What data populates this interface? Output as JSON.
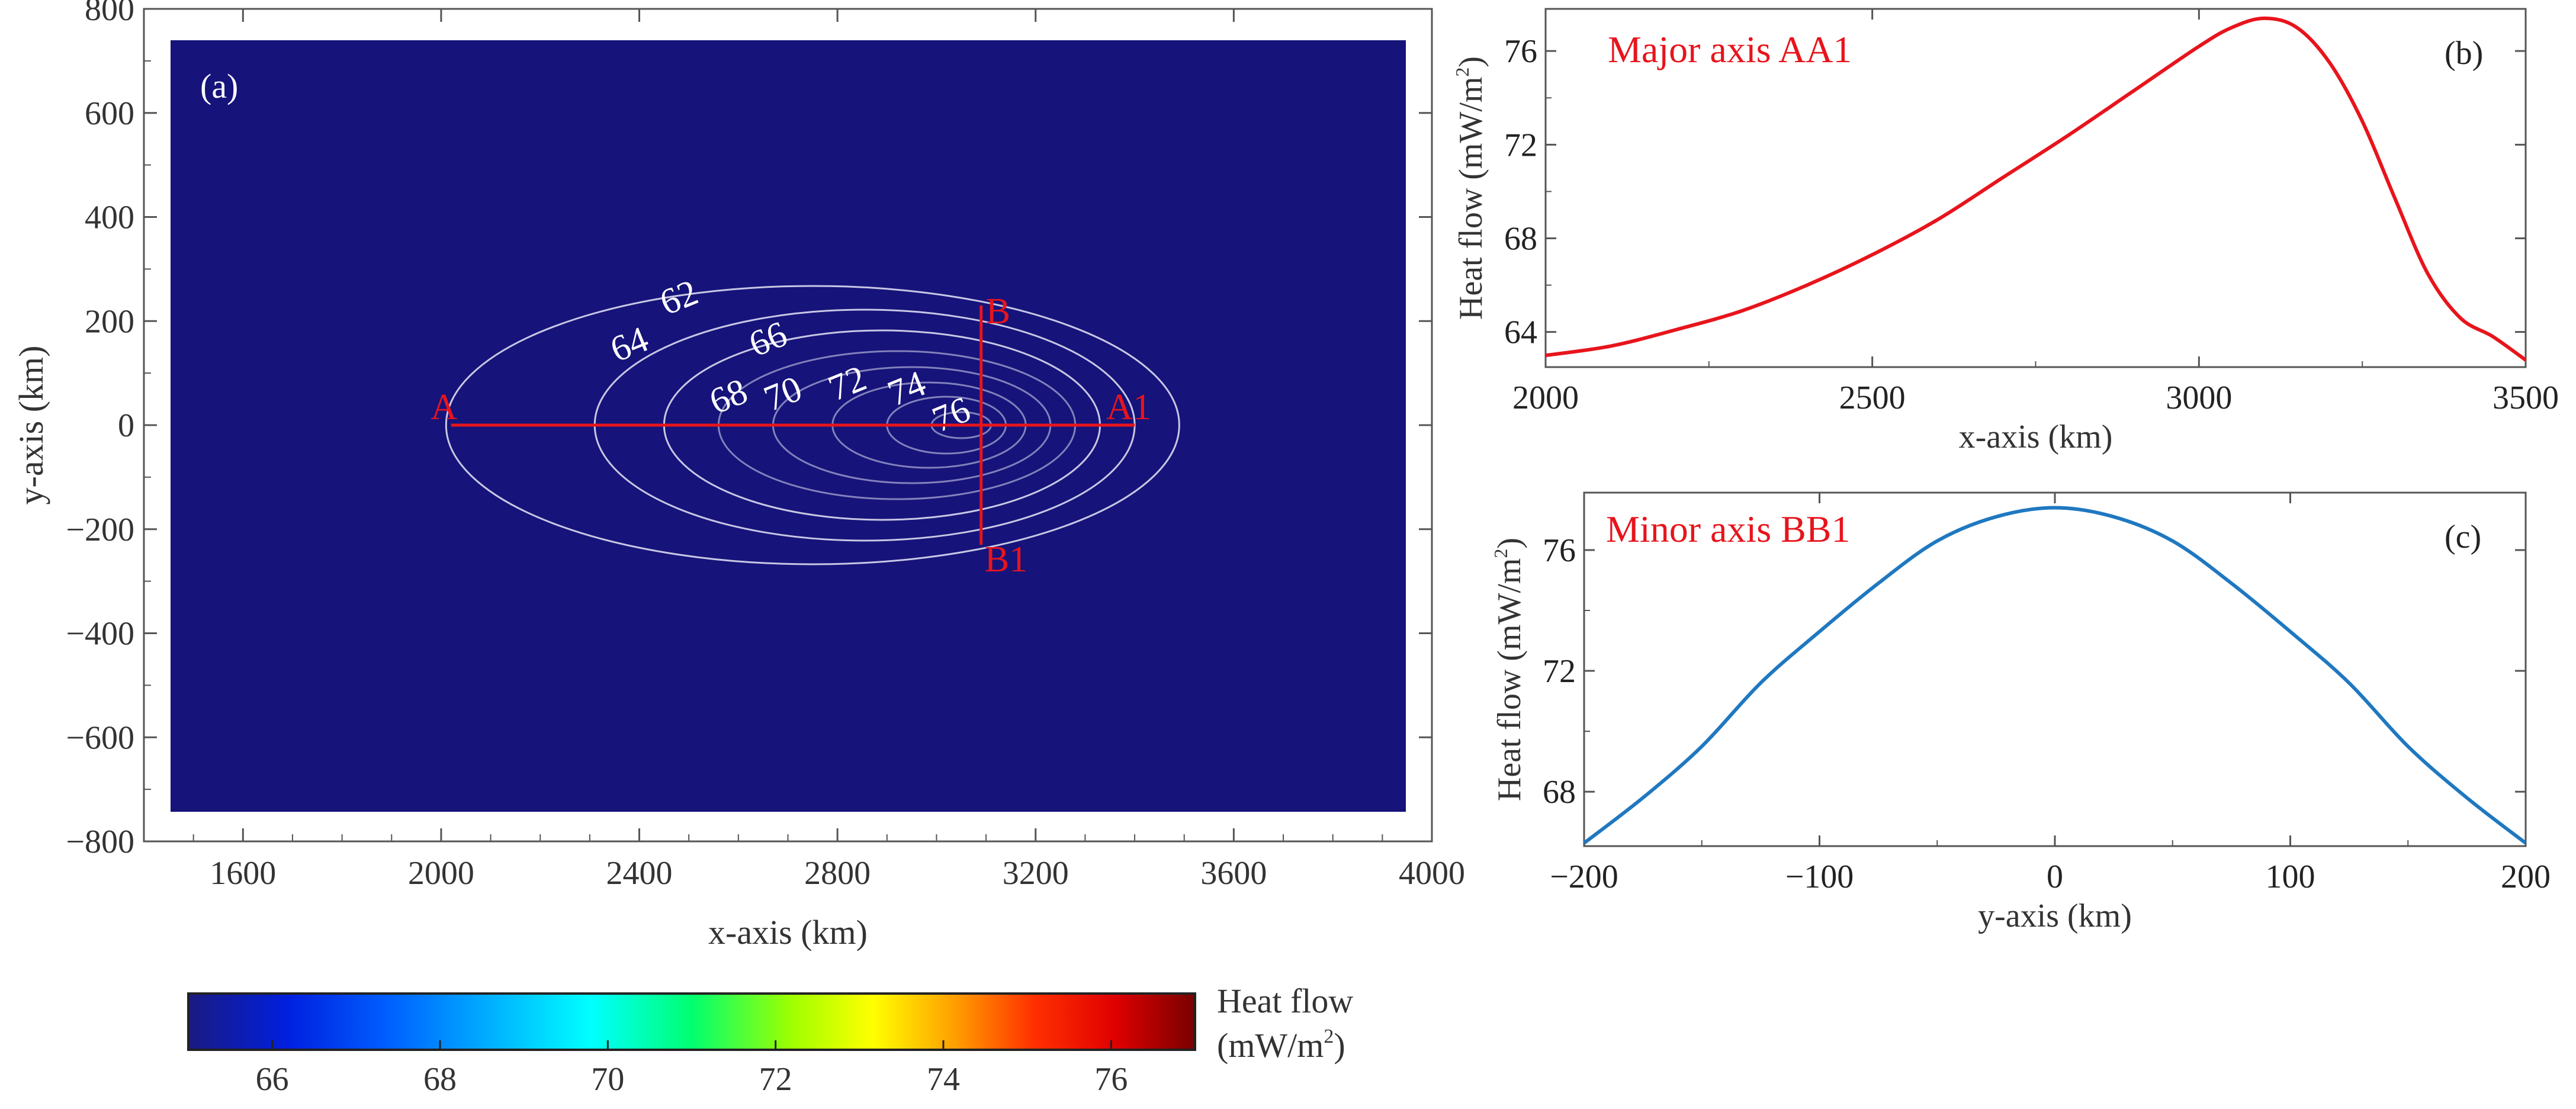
{
  "chart_data": [
    {
      "panel": "(a)",
      "type": "heatmap",
      "title": "",
      "xlabel": "x-axis (km)",
      "ylabel": "y-axis (km)",
      "xlim": [
        1400,
        4000
      ],
      "ylim": [
        -800,
        800
      ],
      "x_ticks": [
        1600,
        2000,
        2400,
        2800,
        3200,
        3600,
        4000
      ],
      "y_ticks": [
        800,
        600,
        400,
        200,
        0,
        -200,
        -400,
        -600,
        -800
      ],
      "data_extent": {
        "x": [
          1450,
          3990
        ],
        "y": [
          -790,
          790
        ]
      },
      "anomaly": {
        "center_x": 3050,
        "center_y": 0,
        "peak": 77,
        "background": 65
      },
      "contour_levels": [
        62,
        64,
        66,
        68,
        70,
        72,
        74,
        76
      ],
      "contour_labels": [
        {
          "text": "62",
          "x": 2480,
          "y": 245
        },
        {
          "text": "64",
          "x": 2380,
          "y": 155
        },
        {
          "text": "66",
          "x": 2660,
          "y": 165
        },
        {
          "text": "68",
          "x": 2580,
          "y": 55
        },
        {
          "text": "70",
          "x": 2690,
          "y": 60
        },
        {
          "text": "72",
          "x": 2820,
          "y": 80
        },
        {
          "text": "74",
          "x": 2940,
          "y": 70
        },
        {
          "text": "76",
          "x": 3030,
          "y": 20
        }
      ],
      "profiles": [
        {
          "name": "AA1",
          "start_label": "A",
          "end_label": "A1",
          "x0": 2020,
          "y0": 0,
          "x1": 3400,
          "y1": 0
        },
        {
          "name": "BB1",
          "start_label": "B",
          "end_label": "B1",
          "x0": 3090,
          "y0": 230,
          "x1": 3090,
          "y1": -230
        }
      ],
      "colorbar": {
        "label_line1": "Heat flow",
        "label_line2": "(mW/m",
        "label_sup": "2",
        "label_tail": ")",
        "range": [
          65,
          77
        ],
        "ticks": [
          66,
          68,
          70,
          72,
          74,
          76
        ],
        "colors": [
          "#16137a",
          "#0000ff",
          "#00a0ff",
          "#00ffff",
          "#00ff60",
          "#80ff00",
          "#ffff00",
          "#ffa000",
          "#ff3000",
          "#ff0000",
          "#b00000",
          "#800000"
        ]
      }
    },
    {
      "panel": "(b)",
      "type": "line",
      "title": "Major axis AA1",
      "xlabel": "x-axis (km)",
      "ylabel_main": "Heat flow (mW/m",
      "ylabel_sup": "2",
      "ylabel_tail": ")",
      "xlim": [
        2000,
        3500
      ],
      "ylim": [
        62.5,
        77.8
      ],
      "x_ticks": [
        2000,
        2500,
        3000,
        3500
      ],
      "y_ticks": [
        64,
        68,
        72,
        76
      ],
      "color": "#e8141c",
      "series": [
        {
          "name": "AA1",
          "x": [
            2000,
            2100,
            2200,
            2300,
            2400,
            2500,
            2600,
            2700,
            2800,
            2900,
            3000,
            3050,
            3100,
            3150,
            3200,
            3250,
            3300,
            3350,
            3400,
            3450,
            3500
          ],
          "y": [
            63.0,
            63.4,
            64.1,
            64.9,
            66.0,
            67.3,
            68.8,
            70.6,
            72.4,
            74.3,
            76.2,
            77.0,
            77.4,
            77.0,
            75.5,
            73.0,
            69.7,
            66.5,
            64.6,
            63.8,
            62.8
          ]
        }
      ]
    },
    {
      "panel": "(c)",
      "type": "line",
      "title": "Minor axis BB1",
      "xlabel": "y-axis (km)",
      "ylabel_main": "Heat flow (mW/m",
      "ylabel_sup": "2",
      "ylabel_tail": ")",
      "xlim": [
        -200,
        200
      ],
      "ylim": [
        66.2,
        77.9
      ],
      "x_ticks": [
        -200,
        -100,
        0,
        100,
        200
      ],
      "x_tick_labels": [
        "−200",
        "−100",
        "0",
        "100",
        "200"
      ],
      "y_ticks": [
        68,
        72,
        76
      ],
      "color": "#1f78c0",
      "series": [
        {
          "name": "BB1",
          "x": [
            -200,
            -175,
            -150,
            -125,
            -100,
            -75,
            -50,
            -25,
            0,
            25,
            50,
            75,
            100,
            125,
            150,
            175,
            200
          ],
          "y": [
            66.3,
            67.8,
            69.5,
            71.6,
            73.3,
            74.9,
            76.3,
            77.1,
            77.4,
            77.1,
            76.3,
            74.9,
            73.3,
            71.6,
            69.5,
            67.8,
            66.3
          ]
        }
      ]
    }
  ]
}
